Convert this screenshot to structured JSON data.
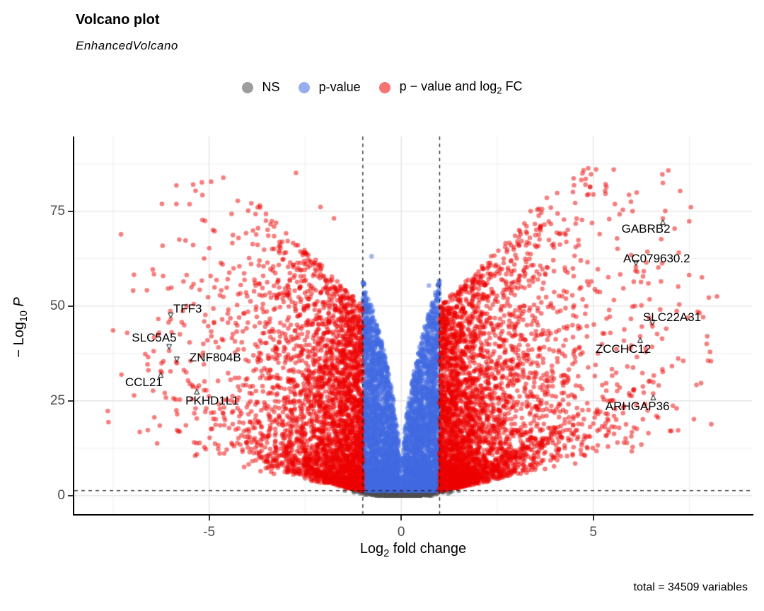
{
  "header": {
    "title": "Volcano plot",
    "subtitle": "EnhancedVolcano"
  },
  "caption": {
    "text": "total = 34509 variables"
  },
  "legend": {
    "items": [
      {
        "name": "ns",
        "pre": "NS",
        "sub": "",
        "post": "",
        "color": "#4D4D4D"
      },
      {
        "name": "pvalue",
        "pre": "p-value",
        "sub": "",
        "post": "",
        "color": "#4169E1"
      },
      {
        "name": "both",
        "pre": "p − value and log",
        "sub": "2",
        "post": " FC",
        "color": "#EE0000"
      }
    ]
  },
  "chart_data": {
    "type": "scatter",
    "title": "Volcano plot",
    "subtitle": "EnhancedVolcano",
    "caption": "total = 34509 variables",
    "total_variables": 34509,
    "xlabel": {
      "pre": "Log",
      "sub": "2",
      "post": " fold change",
      "italic": ""
    },
    "ylabel": {
      "pre": "− Log",
      "sub": "10",
      "post": " ",
      "italic": "P"
    },
    "xlim": [
      -8.51,
      9.13
    ],
    "ylim": [
      -4.9,
      94.7
    ],
    "x_ticks": [
      -5,
      0,
      5
    ],
    "y_ticks": [
      0,
      25,
      50,
      75
    ],
    "grid": {
      "major_x": [
        -5,
        0,
        5
      ],
      "minor_x": [
        -7.5,
        -2.5,
        2.5,
        7.5
      ],
      "major_y": [
        0,
        25,
        50,
        75
      ],
      "minor_y": [
        12.5,
        37.5,
        62.5,
        87.5
      ],
      "major_color": "#e4e4e4",
      "minor_color": "#f0f0f0"
    },
    "thresholds": {
      "log2fc_cutoffs": [
        -1,
        1
      ],
      "pvalue_cutoff_y": 1.3,
      "line_color": "#222222"
    },
    "colors": {
      "ns": "#4D4D4D",
      "pvalue": "#4169E1",
      "both": "#EE0000"
    },
    "point_alpha": 0.5,
    "point_radius": 3.3,
    "seed": 2024042,
    "legend_labels": [
      "NS",
      "p-value",
      "p − value and log2 FC"
    ],
    "legend_position": "top",
    "labeled_genes": [
      {
        "gene": "GABRB2",
        "x": 6.81,
        "y": 73.1,
        "lx": 6.37,
        "ly": 70.3,
        "arrow": "up"
      },
      {
        "gene": "AC079630.2",
        "x": 6.11,
        "y": 60.3,
        "lx": 6.65,
        "ly": 62.4,
        "arrow": "down"
      },
      {
        "gene": "SLC22A31",
        "x": 6.54,
        "y": 44.6,
        "lx": 7.05,
        "ly": 47.0,
        "arrow": "down"
      },
      {
        "gene": "ZCCHC12",
        "x": 6.22,
        "y": 42.0,
        "lx": 5.78,
        "ly": 38.6,
        "arrow": "up"
      },
      {
        "gene": "ARHGAP36",
        "x": 6.56,
        "y": 26.9,
        "lx": 6.15,
        "ly": 23.4,
        "arrow": "up"
      },
      {
        "gene": "TFF3",
        "x": -6.0,
        "y": 46.5,
        "lx": -5.56,
        "ly": 49.1,
        "arrow": "down"
      },
      {
        "gene": "SLC5A5",
        "x": -6.04,
        "y": 38.2,
        "lx": -6.43,
        "ly": 41.6,
        "arrow": "down"
      },
      {
        "gene": "ZNF804B",
        "x": -5.84,
        "y": 34.9,
        "lx": -4.84,
        "ly": 36.3,
        "arrow": "down"
      },
      {
        "gene": "CCL21",
        "x": -6.26,
        "y": 32.8,
        "lx": -6.7,
        "ly": 29.7,
        "arrow": "up"
      },
      {
        "gene": "PKHD1L1",
        "x": -5.32,
        "y": 28.4,
        "lx": -4.92,
        "ly": 25.0,
        "arrow": "up"
      }
    ],
    "notable_points": [
      {
        "x": -2.74,
        "y": 85.1,
        "cat": "both"
      },
      {
        "x": 5.32,
        "y": 82.1,
        "cat": "both"
      },
      {
        "x": 3.79,
        "y": 78.5,
        "cat": "both"
      },
      {
        "x": -2.1,
        "y": 76.1,
        "cat": "both"
      },
      {
        "x": 3.37,
        "y": 75.0,
        "cat": "both"
      },
      {
        "x": -1.75,
        "y": 73.1,
        "cat": "both"
      },
      {
        "x": 3.63,
        "y": 70.9,
        "cat": "both"
      },
      {
        "x": -4.38,
        "y": 68.7,
        "cat": "both"
      },
      {
        "x": -3.17,
        "y": 64.0,
        "cat": "both"
      },
      {
        "x": 5.63,
        "y": 65.1,
        "cat": "both"
      },
      {
        "x": 4.47,
        "y": 59.9,
        "cat": "both"
      },
      {
        "x": -5.19,
        "y": 56.7,
        "cat": "both"
      },
      {
        "x": -4.86,
        "y": 54.9,
        "cat": "both"
      },
      {
        "x": -3.79,
        "y": 55.4,
        "cat": "both"
      },
      {
        "x": -0.77,
        "y": 63.1,
        "cat": "pvalue"
      },
      {
        "x": -0.96,
        "y": 55.8,
        "cat": "pvalue"
      },
      {
        "x": 0.72,
        "y": 55.4,
        "cat": "pvalue"
      }
    ],
    "clusters": [
      {
        "name": "ns_main",
        "cat": "ns",
        "count": 2600,
        "x_sigma": 0.5,
        "x_clip": 1.5,
        "y_pow": 1.1
      },
      {
        "name": "ns_core",
        "cat": "ns",
        "count": 1500,
        "x_sigma": 0.28,
        "y_mean": 0.32,
        "y_sd": 0.3
      },
      {
        "name": "blue_col",
        "cat": "pvalue",
        "count": 5200,
        "x_max": 1.0,
        "x_pow": 0.75,
        "env_coef": 57,
        "env_pow": 0.5,
        "y_min": 1.3,
        "y_cap": 60,
        "y_density_pow": 1.7
      },
      {
        "name": "red_left",
        "cat": "both",
        "count": 3300,
        "side": -1,
        "d_max": 6.8,
        "lambda": 1.15,
        "ymin_coef": 3.0,
        "ymin_pow": 1.1,
        "ytop_base": 50,
        "ytop_slope": 10,
        "y_cap": 87,
        "y_density_pow": 2.0
      },
      {
        "name": "red_right",
        "cat": "both",
        "count": 3800,
        "side": 1,
        "d_max": 7.3,
        "lambda": 1.25,
        "ymin_coef": 3.0,
        "ymin_pow": 1.1,
        "ytop_base": 50,
        "ytop_slope": 10,
        "y_cap": 87,
        "y_density_pow": 2.0
      },
      {
        "name": "far_left",
        "cat": "both",
        "count": 26,
        "uniform_x": [
          -7.7,
          -4.6
        ],
        "uniform_y": [
          12,
          50
        ]
      },
      {
        "name": "far_right",
        "cat": "both",
        "count": 32,
        "uniform_x": [
          4.6,
          8.2
        ],
        "uniform_y": [
          15,
          52
        ]
      }
    ]
  }
}
